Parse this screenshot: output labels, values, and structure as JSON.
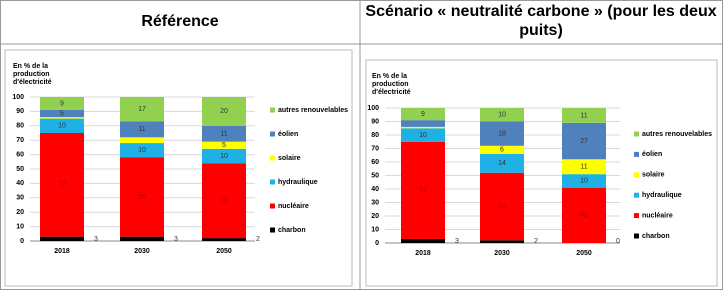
{
  "chart_data": [
    {
      "type": "stacked_bar",
      "title": "Référence",
      "ylabel": [
        "En % de la",
        "production",
        "d'électricité"
      ],
      "categories": [
        "2018",
        "2030",
        "2050"
      ],
      "ylim": [
        0,
        100
      ],
      "yticks": [
        0,
        10,
        20,
        30,
        40,
        50,
        60,
        70,
        80,
        90,
        100
      ],
      "grid": true,
      "series": [
        {
          "name": "charbon",
          "color": "#000000",
          "values": [
            3,
            3,
            2
          ]
        },
        {
          "name": "nucléaire",
          "color": "#ff0000",
          "values": [
            72,
            55,
            52
          ]
        },
        {
          "name": "hydraulique",
          "color": "#1fb0e6",
          "values": [
            10,
            10,
            10
          ]
        },
        {
          "name": "solaire",
          "color": "#ffff00",
          "values": [
            1,
            4,
            5
          ]
        },
        {
          "name": "éolien",
          "color": "#4f81bd",
          "values": [
            5,
            11,
            11
          ]
        },
        {
          "name": "autres renouvelables",
          "color": "#92d050",
          "values": [
            9,
            17,
            20
          ]
        }
      ]
    },
    {
      "type": "stacked_bar",
      "title": "Scénario « neutralité carbone » (pour les deux puits)",
      "ylabel": [
        "En % de la",
        "production",
        "d'électricité"
      ],
      "categories": [
        "2018",
        "2030",
        "2050"
      ],
      "ylim": [
        0,
        100
      ],
      "yticks": [
        0,
        10,
        20,
        30,
        40,
        50,
        60,
        70,
        80,
        90,
        100
      ],
      "grid": true,
      "series": [
        {
          "name": "charbon",
          "color": "#000000",
          "values": [
            3,
            2,
            0
          ]
        },
        {
          "name": "nucléaire",
          "color": "#ff0000",
          "values": [
            72,
            50,
            41
          ]
        },
        {
          "name": "hydraulique",
          "color": "#1fb0e6",
          "values": [
            10,
            14,
            10
          ]
        },
        {
          "name": "solaire",
          "color": "#ffff00",
          "values": [
            1,
            6,
            11
          ]
        },
        {
          "name": "éolien",
          "color": "#4f81bd",
          "values": [
            5,
            18,
            27
          ]
        },
        {
          "name": "autres renouvelables",
          "color": "#92d050",
          "values": [
            9,
            10,
            11
          ]
        }
      ]
    }
  ]
}
